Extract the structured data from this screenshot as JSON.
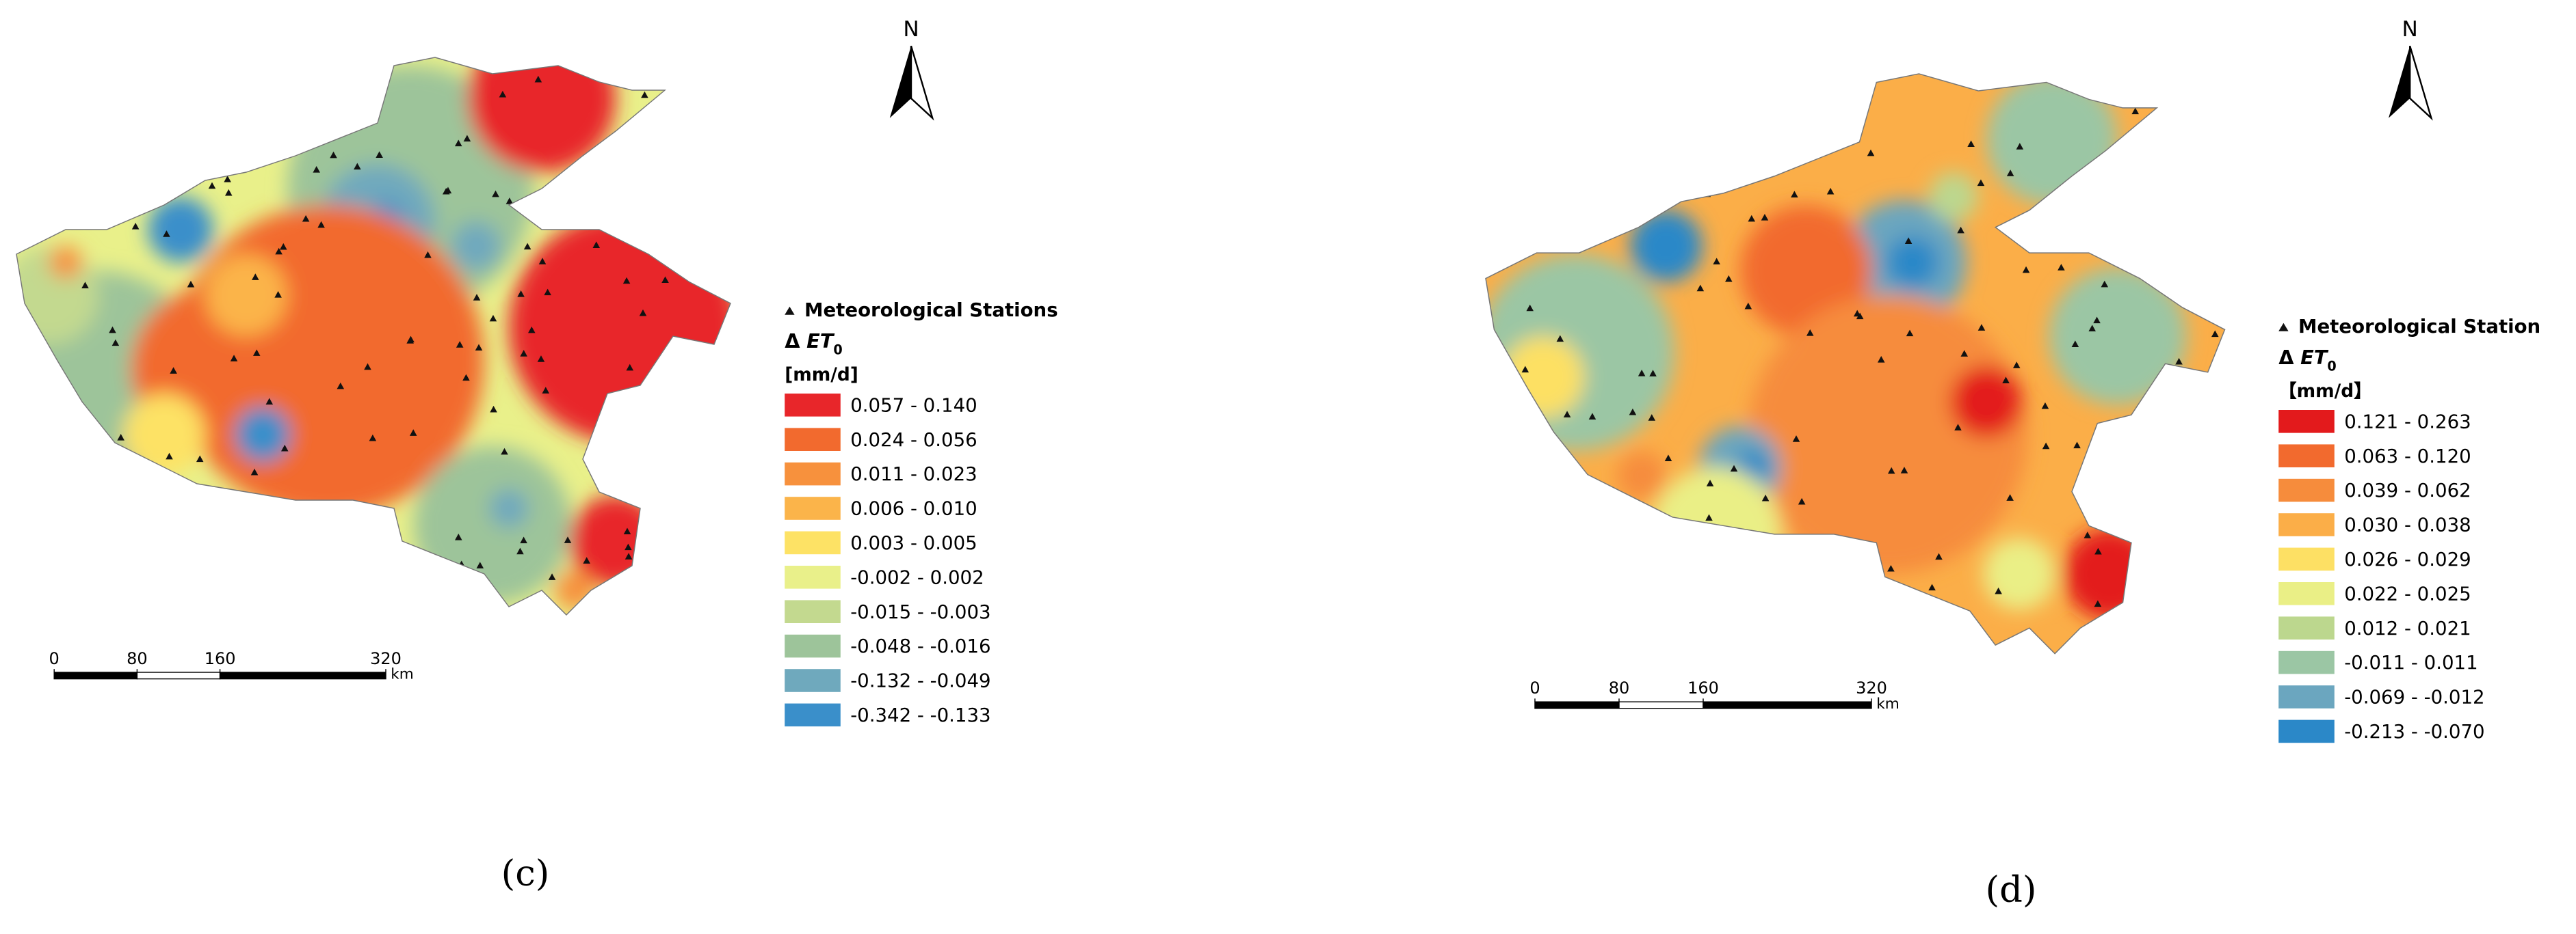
{
  "panels": [
    {
      "north": "N",
      "legend": {
        "stations": "Meteorological Stations",
        "title": {
          "delta": "Δ",
          "et": "ET",
          "sub": "0"
        },
        "unit": "[mm/d]",
        "items": [
          {
            "label": "0.057 - 0.140",
            "color": "#e8262a"
          },
          {
            "label": "0.024 - 0.056",
            "color": "#f26a2e"
          },
          {
            "label": "0.011 - 0.023",
            "color": "#f7913d"
          },
          {
            "label": "0.006 - 0.010",
            "color": "#fbb44a"
          },
          {
            "label": "0.003 - 0.005",
            "color": "#fde265"
          },
          {
            "label": "-0.002 - 0.002",
            "color": "#e9f08a"
          },
          {
            "label": "-0.015 - -0.003",
            "color": "#c3d98f"
          },
          {
            "label": "-0.048 - -0.016",
            "color": "#9dc49a"
          },
          {
            "label": "-0.132 - -0.049",
            "color": "#6fa9bd"
          },
          {
            "label": "-0.342 - -0.133",
            "color": "#3a8fca"
          }
        ]
      },
      "scale_bar": {
        "ticks": [
          0,
          80,
          160,
          320
        ],
        "unit": "km"
      },
      "caption": "(c)"
    },
    {
      "north": "N",
      "legend": {
        "stations": "Meteorological Station",
        "title": {
          "delta": "Δ",
          "et": "ET",
          "sub": "0"
        },
        "unit": "【mm/d】",
        "items": [
          {
            "label": "0.121 - 0.263",
            "color": "#e31a1c"
          },
          {
            "label": "0.063 - 0.120",
            "color": "#f26a2e"
          },
          {
            "label": "0.039 - 0.062",
            "color": "#f68c3c"
          },
          {
            "label": "0.030 - 0.038",
            "color": "#fbae48"
          },
          {
            "label": "0.026 - 0.029",
            "color": "#fde064"
          },
          {
            "label": "0.022 - 0.025",
            "color": "#eaef86"
          },
          {
            "label": "0.012 - 0.021",
            "color": "#bcd78e"
          },
          {
            "label": "-0.011 - 0.011",
            "color": "#9bc6a4"
          },
          {
            "label": "-0.069 - -0.012",
            "color": "#6ba6bf"
          },
          {
            "label": "-0.213 - -0.070",
            "color": "#2b88c8"
          }
        ]
      },
      "scale_bar": {
        "ticks": [
          0,
          80,
          160,
          320
        ],
        "unit": "km"
      },
      "caption": "(d)"
    }
  ]
}
